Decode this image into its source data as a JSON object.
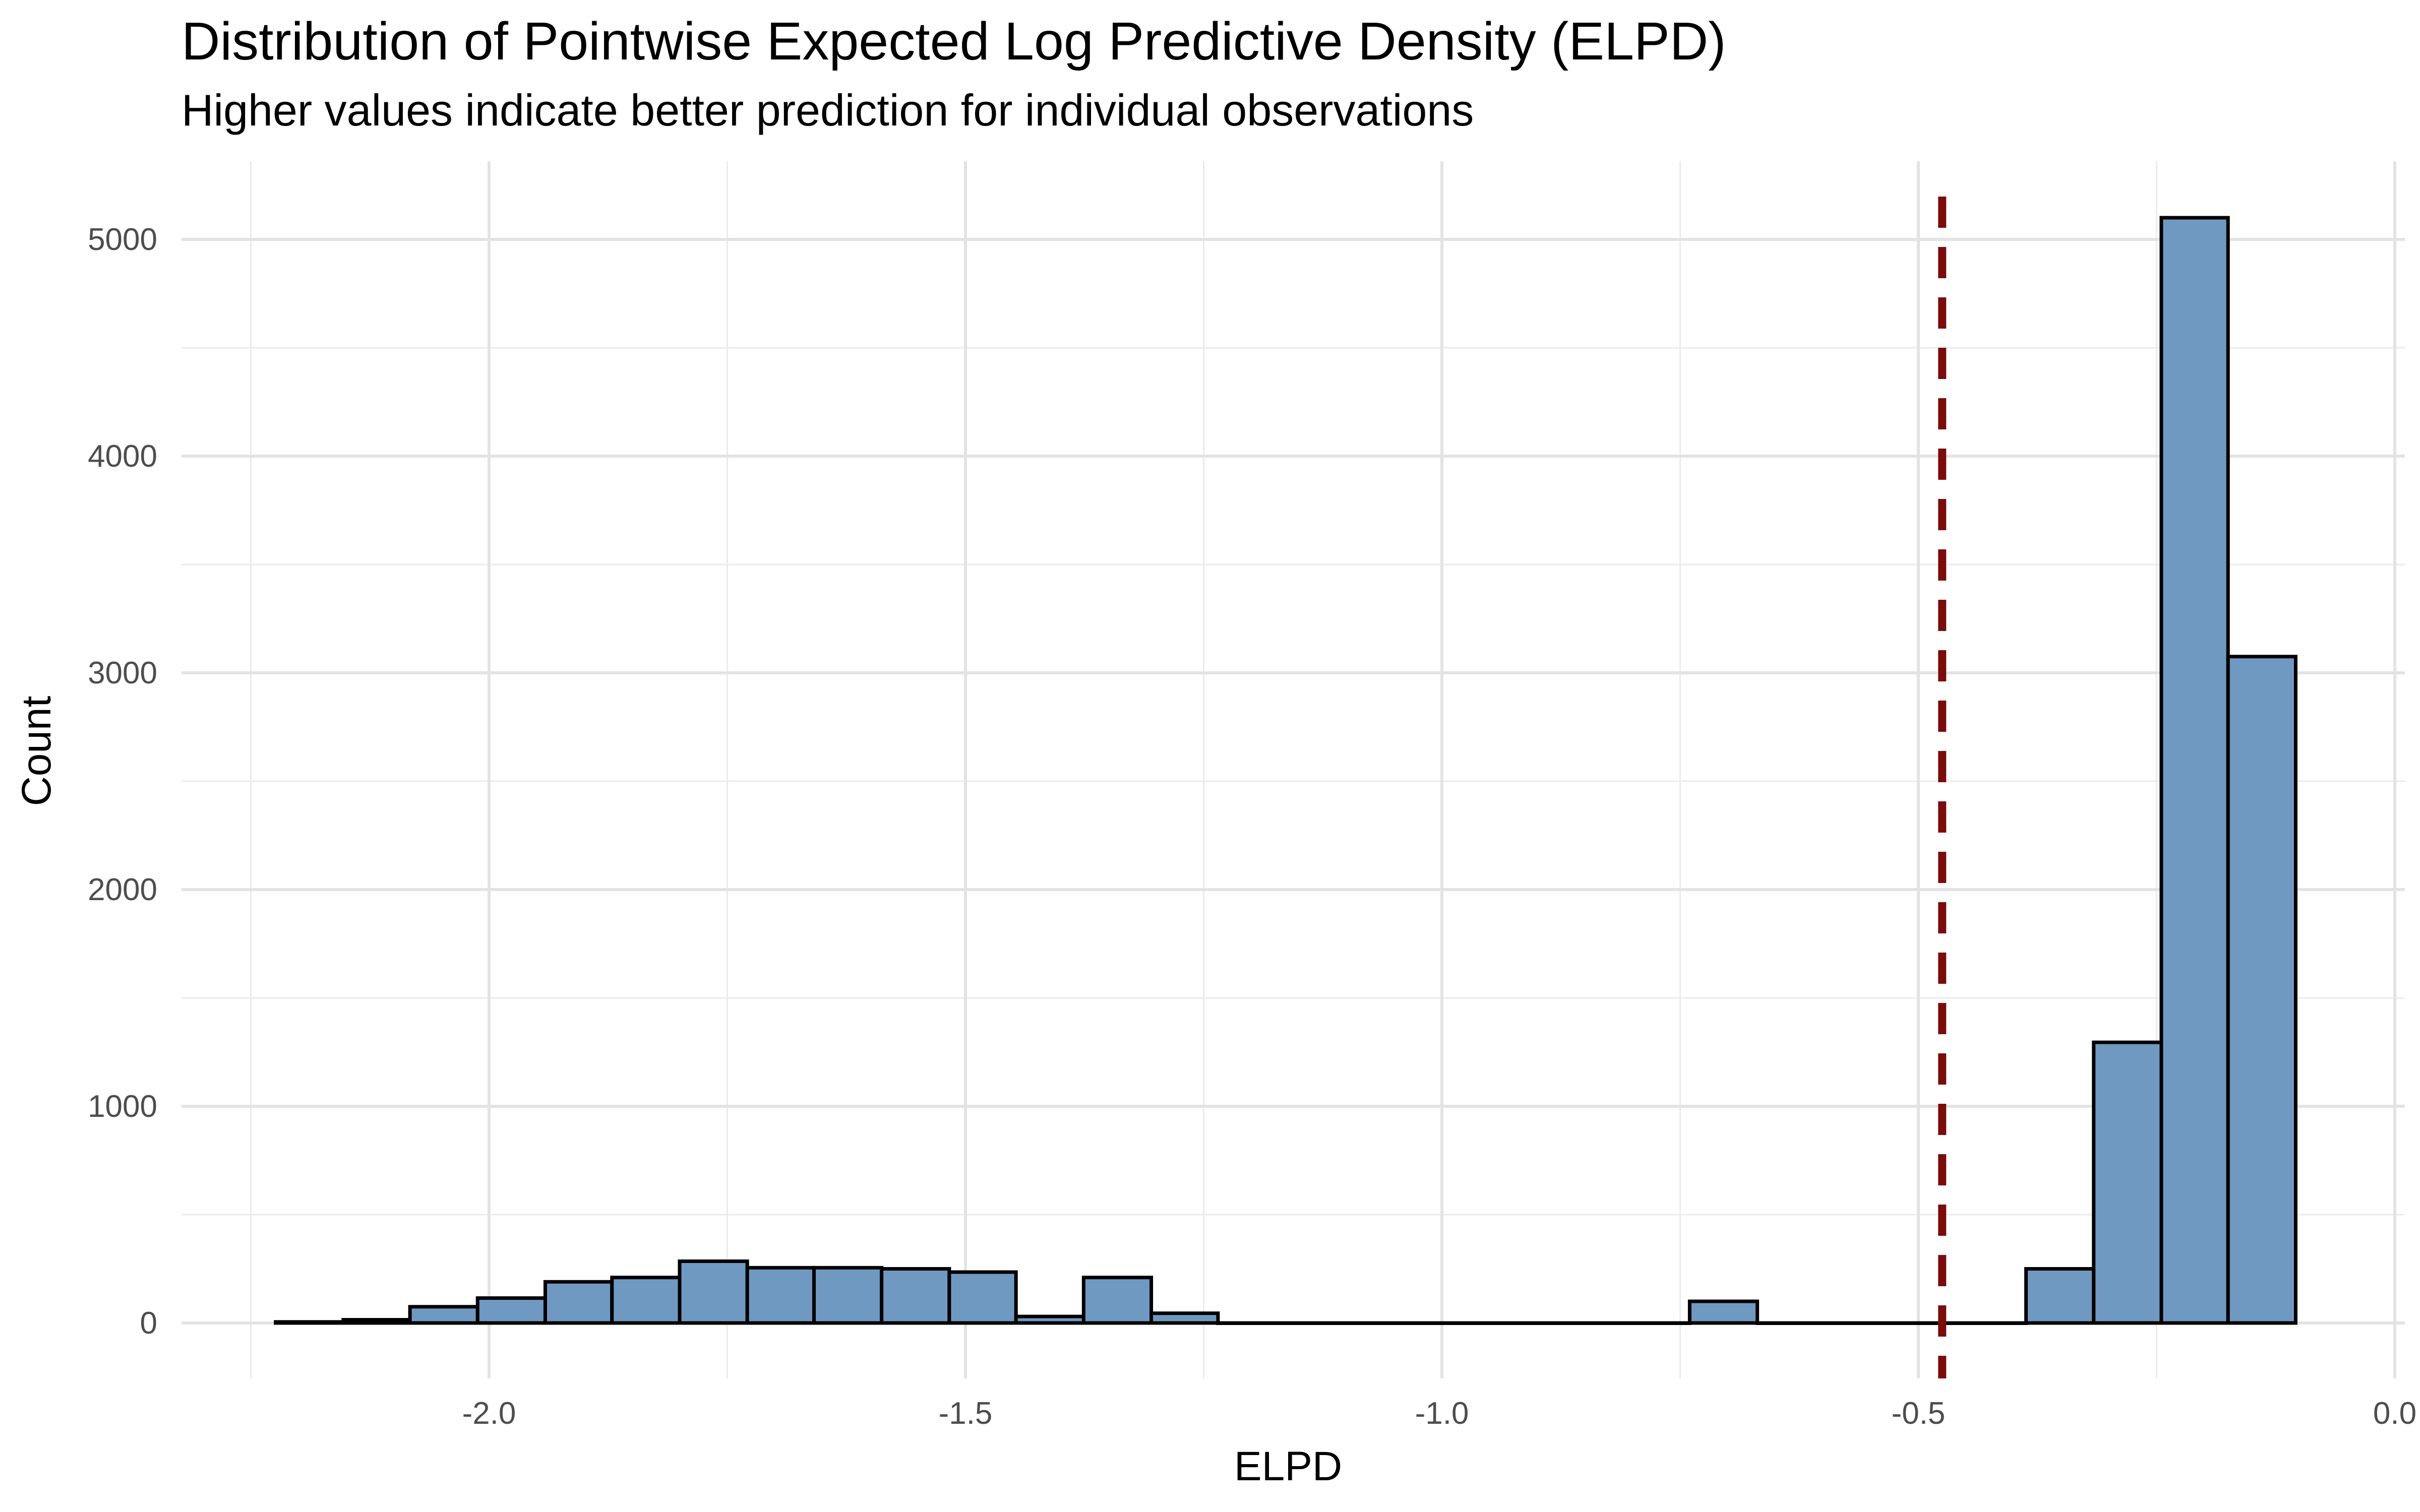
{
  "chart_data": {
    "type": "bar",
    "title": "Distribution of Pointwise Expected Log Predictive Density (ELPD)",
    "subtitle": "Higher values indicate better prediction for individual observations",
    "xlabel": "ELPD",
    "ylabel": "Count",
    "xlim": [
      -2.3,
      0.0
    ],
    "ylim": [
      0,
      5200
    ],
    "x_ticks": [
      -2.0,
      -1.5,
      -1.0,
      -0.5,
      0.0
    ],
    "x_tick_labels": [
      "-2.0",
      "-1.5",
      "-1.0",
      "-0.5",
      "0.0"
    ],
    "y_ticks": [
      0,
      1000,
      2000,
      3000,
      4000,
      5000
    ],
    "y_tick_labels": [
      "0",
      "1000",
      "2000",
      "3000",
      "4000",
      "5000"
    ],
    "grid": true,
    "bin_width": 0.0707,
    "bins": [
      {
        "x_start": -2.224,
        "x_end": -2.153,
        "count": 5
      },
      {
        "x_start": -2.153,
        "x_end": -2.083,
        "count": 15
      },
      {
        "x_start": -2.083,
        "x_end": -2.012,
        "count": 75
      },
      {
        "x_start": -2.012,
        "x_end": -1.941,
        "count": 115
      },
      {
        "x_start": -1.941,
        "x_end": -1.871,
        "count": 190
      },
      {
        "x_start": -1.871,
        "x_end": -1.8,
        "count": 210
      },
      {
        "x_start": -1.8,
        "x_end": -1.729,
        "count": 285
      },
      {
        "x_start": -1.729,
        "x_end": -1.659,
        "count": 255
      },
      {
        "x_start": -1.659,
        "x_end": -1.588,
        "count": 255
      },
      {
        "x_start": -1.588,
        "x_end": -1.517,
        "count": 250
      },
      {
        "x_start": -1.517,
        "x_end": -1.447,
        "count": 235
      },
      {
        "x_start": -1.447,
        "x_end": -1.376,
        "count": 30
      },
      {
        "x_start": -1.376,
        "x_end": -1.305,
        "count": 210
      },
      {
        "x_start": -1.305,
        "x_end": -1.235,
        "count": 45
      },
      {
        "x_start": -1.235,
        "x_end": -1.164,
        "count": 0
      },
      {
        "x_start": -1.164,
        "x_end": -1.093,
        "count": 0
      },
      {
        "x_start": -1.093,
        "x_end": -1.023,
        "count": 0
      },
      {
        "x_start": -1.023,
        "x_end": -0.952,
        "count": 0
      },
      {
        "x_start": -0.952,
        "x_end": -0.881,
        "count": 0
      },
      {
        "x_start": -0.881,
        "x_end": -0.811,
        "count": 0
      },
      {
        "x_start": -0.811,
        "x_end": -0.74,
        "count": 0
      },
      {
        "x_start": -0.74,
        "x_end": -0.669,
        "count": 100
      },
      {
        "x_start": -0.669,
        "x_end": -0.599,
        "count": 0
      },
      {
        "x_start": -0.599,
        "x_end": -0.528,
        "count": 0
      },
      {
        "x_start": -0.528,
        "x_end": -0.457,
        "count": 0
      },
      {
        "x_start": -0.457,
        "x_end": -0.387,
        "count": 0
      },
      {
        "x_start": -0.387,
        "x_end": -0.316,
        "count": 250
      },
      {
        "x_start": -0.316,
        "x_end": -0.245,
        "count": 1295
      },
      {
        "x_start": -0.245,
        "x_end": -0.175,
        "count": 5100
      },
      {
        "x_start": -0.175,
        "x_end": -0.104,
        "count": 3075
      }
    ],
    "reference_line": {
      "x": -0.475,
      "style": "dashed",
      "color": "#7a0c0c"
    },
    "bar_fill": "#7099c2",
    "bar_stroke": "#000000"
  }
}
